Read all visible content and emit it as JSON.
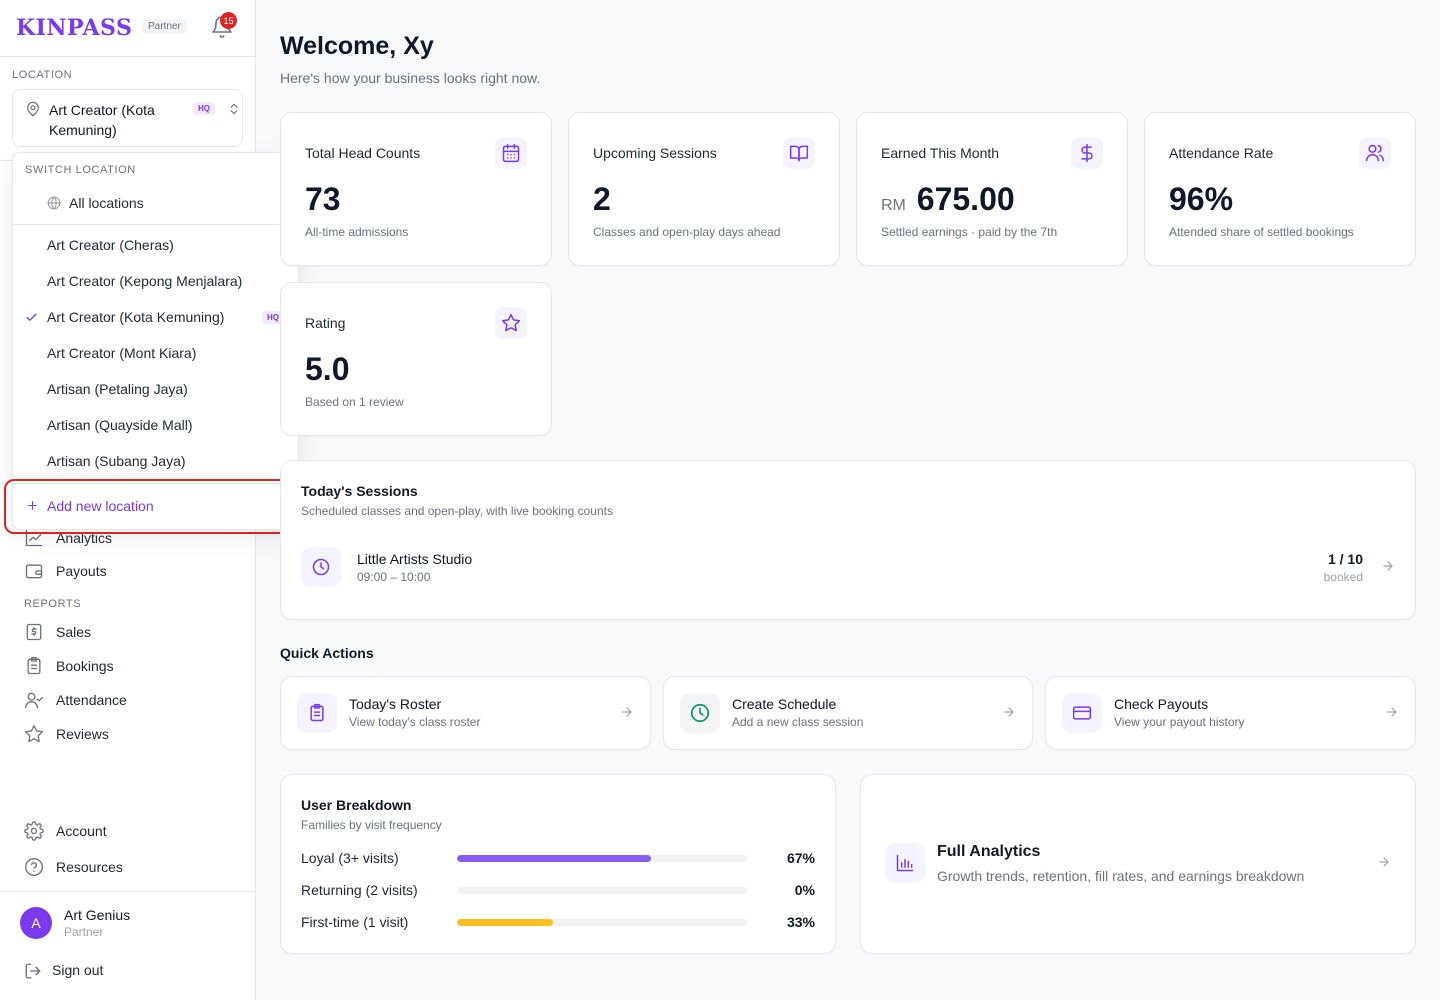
{
  "brand": {
    "logo": "KINPASS",
    "tag": "Partner",
    "notifications": "15"
  },
  "location": {
    "section_label": "LOCATION",
    "current": "Art Creator (Kota Kemuning)",
    "hq_badge": "HQ"
  },
  "switch_location": {
    "label": "SWITCH LOCATION",
    "all": "All locations",
    "items": [
      {
        "label": "Art Creator (Cheras)"
      },
      {
        "label": "Art Creator (Kepong Menjalara)"
      },
      {
        "label": "Art Creator (Kota Kemuning)",
        "selected": true,
        "badge": "HQ"
      },
      {
        "label": "Art Creator (Mont Kiara)"
      },
      {
        "label": "Artisan (Petaling Jaya)"
      },
      {
        "label": "Artisan (Quayside Mall)"
      },
      {
        "label": "Artisan (Subang Jaya)"
      }
    ],
    "add_new": "Add new location"
  },
  "nav": {
    "analytics": "Analytics",
    "payouts": "Payouts",
    "reports_label": "REPORTS",
    "sales": "Sales",
    "bookings": "Bookings",
    "attendance": "Attendance",
    "reviews": "Reviews",
    "account": "Account",
    "resources": "Resources"
  },
  "user": {
    "initial": "A",
    "name": "Art Genius",
    "role": "Partner",
    "sign_out": "Sign out"
  },
  "header": {
    "title": "Welcome, Xy",
    "subtitle": "Here's how your business looks right now."
  },
  "stats": [
    {
      "label": "Total Head Counts",
      "value": "73",
      "sub": "All-time admissions",
      "icon": "calendar-icon"
    },
    {
      "label": "Upcoming Sessions",
      "value": "2",
      "sub": "Classes and open-play days ahead",
      "icon": "book-open-icon"
    },
    {
      "label": "Earned This Month",
      "currency": "RM",
      "value": "675.00",
      "sub": "Settled earnings · paid by the 7th",
      "icon": "dollar-icon"
    },
    {
      "label": "Attendance Rate",
      "value": "96%",
      "sub": "Attended share of settled bookings",
      "icon": "users-icon"
    },
    {
      "label": "Rating",
      "value": "5.0",
      "sub": "Based on 1 review",
      "icon": "star-icon"
    }
  ],
  "sessions": {
    "title": "Today's Sessions",
    "description": "Scheduled classes and open-play, with live booking counts",
    "items": [
      {
        "name": "Little Artists Studio",
        "time": "09:00 – 10:00",
        "count": "1 / 10",
        "count_label": "booked"
      }
    ]
  },
  "quick_actions": {
    "title": "Quick Actions",
    "items": [
      {
        "title": "Today's Roster",
        "subtitle": "View today's class roster",
        "icon": "clipboard-icon",
        "color": "#7c3aed",
        "bg": "#f5f3ff"
      },
      {
        "title": "Create Schedule",
        "subtitle": "Add a new class session",
        "icon": "clock-icon",
        "color": "#059669",
        "bg": "#f3f4f6"
      },
      {
        "title": "Check Payouts",
        "subtitle": "View your payout history",
        "icon": "credit-card-icon",
        "color": "#7c3aed",
        "bg": "#f5f3ff"
      }
    ]
  },
  "user_breakdown": {
    "title": "User Breakdown",
    "description": "Families by visit frequency",
    "rows": [
      {
        "label": "Loyal (3+ visits)",
        "pct": "67%",
        "value": 67,
        "color": "#8b5cf6"
      },
      {
        "label": "Returning (2 visits)",
        "pct": "0%",
        "value": 0,
        "color": "#8b5cf6"
      },
      {
        "label": "First-time (1 visit)",
        "pct": "33%",
        "value": 33,
        "color": "#fbbf24"
      }
    ]
  },
  "full_analytics": {
    "title": "Full Analytics",
    "subtitle": "Growth trends, retention, fill rates, and earnings breakdown"
  },
  "colors": {
    "accent": "#7c3aed",
    "danger": "#dc2626",
    "warning": "#fbbf24"
  }
}
